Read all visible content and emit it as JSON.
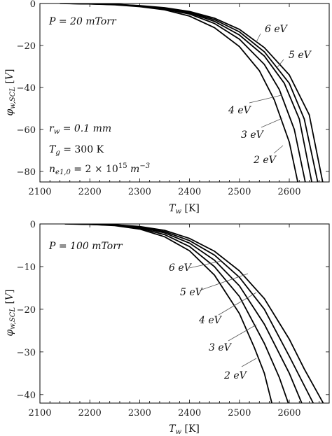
{
  "chart_data": [
    {
      "type": "line",
      "xlabel": "T_w [K]",
      "ylabel": "φ_w,SCL [V]",
      "xlim": [
        2100,
        2680
      ],
      "ylim": [
        -85,
        0
      ],
      "xticks": [
        "2100",
        "2200",
        "2300",
        "2400",
        "2500",
        "2600"
      ],
      "yticks": [
        "0",
        "−20",
        "−40",
        "−60",
        "−80"
      ],
      "ytick_values": [
        0,
        -20,
        -40,
        -60,
        -80
      ],
      "annotations": [
        "P = 20 mTorr",
        "r_w = 0.1 mm",
        "T_g = 300 K",
        "n_e1,0 = 2 × 10^15 m^−3"
      ],
      "series": [
        {
          "name": "2 eV",
          "x": [
            2140,
            2200,
            2250,
            2300,
            2350,
            2400,
            2450,
            2500,
            2540,
            2570,
            2600,
            2617
          ],
          "y": [
            0,
            -0.2,
            -0.6,
            -1.5,
            -3.0,
            -6.0,
            -11.5,
            -20.5,
            -32,
            -46,
            -66,
            -85
          ]
        },
        {
          "name": "3 eV",
          "x": [
            2150,
            2200,
            2250,
            2300,
            2350,
            2400,
            2450,
            2500,
            2550,
            2580,
            2610,
            2632
          ],
          "y": [
            0,
            -0.2,
            -0.5,
            -1.3,
            -2.7,
            -5.0,
            -9.5,
            -17,
            -29,
            -41,
            -60,
            -85
          ]
        },
        {
          "name": "4 eV",
          "x": [
            2150,
            2200,
            2250,
            2300,
            2350,
            2400,
            2450,
            2500,
            2550,
            2590,
            2620,
            2645
          ],
          "y": [
            0,
            -0.2,
            -0.5,
            -1.2,
            -2.5,
            -4.5,
            -8.5,
            -15,
            -25,
            -38,
            -55,
            -85
          ]
        },
        {
          "name": "5 eV",
          "x": [
            2160,
            2200,
            2250,
            2300,
            2350,
            2400,
            2450,
            2500,
            2550,
            2600,
            2630,
            2657
          ],
          "y": [
            0,
            -0.1,
            -0.4,
            -1.1,
            -2.3,
            -4.2,
            -7.7,
            -13.5,
            -23,
            -38,
            -55,
            -85
          ]
        },
        {
          "name": "6 eV",
          "x": [
            2160,
            2200,
            2250,
            2300,
            2350,
            2400,
            2450,
            2500,
            2550,
            2600,
            2640,
            2667
          ],
          "y": [
            0,
            -0.1,
            -0.4,
            -1.0,
            -2.0,
            -3.8,
            -7.0,
            -12.3,
            -21,
            -34,
            -53,
            -85
          ]
        }
      ]
    },
    {
      "type": "line",
      "xlabel": "T_w [K]",
      "ylabel": "φ_w,SCL [V]",
      "xlim": [
        2100,
        2680
      ],
      "ylim": [
        -42,
        0
      ],
      "xticks": [
        "2100",
        "2200",
        "2300",
        "2400",
        "2500",
        "2600"
      ],
      "yticks": [
        "0",
        "−10",
        "−20",
        "−30",
        "−40"
      ],
      "ytick_values": [
        0,
        -10,
        -20,
        -30,
        -40
      ],
      "annotations": [
        "P = 100 mTorr"
      ],
      "series": [
        {
          "name": "2 eV",
          "x": [
            2150,
            2200,
            2250,
            2300,
            2350,
            2400,
            2450,
            2500,
            2530,
            2550,
            2565
          ],
          "y": [
            0,
            -0.1,
            -0.4,
            -1.2,
            -3.0,
            -6.3,
            -12,
            -21,
            -29,
            -35,
            -42
          ]
        },
        {
          "name": "3 eV",
          "x": [
            2160,
            2200,
            2250,
            2300,
            2350,
            2400,
            2450,
            2500,
            2550,
            2580,
            2598
          ],
          "y": [
            0,
            -0.1,
            -0.3,
            -1.0,
            -2.5,
            -5.3,
            -10,
            -17,
            -28,
            -36,
            -42
          ]
        },
        {
          "name": "4 eV",
          "x": [
            2170,
            2200,
            2250,
            2300,
            2350,
            2400,
            2450,
            2500,
            2550,
            2600,
            2625
          ],
          "y": [
            0,
            -0.1,
            -0.3,
            -0.8,
            -2.1,
            -4.5,
            -8.5,
            -14.5,
            -23.5,
            -35,
            -42
          ]
        },
        {
          "name": "5 eV",
          "x": [
            2175,
            2200,
            2250,
            2300,
            2350,
            2400,
            2450,
            2500,
            2550,
            2600,
            2648
          ],
          "y": [
            0,
            -0.1,
            -0.2,
            -0.7,
            -1.8,
            -3.9,
            -7.3,
            -12.5,
            -20,
            -31,
            -42
          ]
        },
        {
          "name": "6 eV",
          "x": [
            2180,
            2200,
            2250,
            2300,
            2350,
            2400,
            2450,
            2500,
            2550,
            2600,
            2630,
            2668
          ],
          "y": [
            0,
            -0.05,
            -0.2,
            -0.6,
            -1.5,
            -3.4,
            -6.4,
            -11,
            -17.5,
            -27,
            -34,
            -42
          ]
        }
      ]
    }
  ]
}
